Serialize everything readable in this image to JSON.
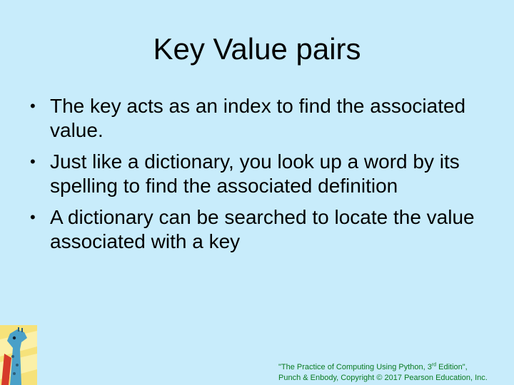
{
  "slide": {
    "title": "Key Value pairs",
    "bullets": [
      "The key acts as an index to find the associated value.",
      "Just like a dictionary, you look up a word by its spelling to find the associated definition",
      "A dictionary can be searched to locate the value associated with a key"
    ]
  },
  "footer": {
    "line1_before_sup": "\"The Practice of Computing Using Python, 3",
    "line1_sup": "rd",
    "line1_after_sup": " Edition\",",
    "line2": "Punch & Enbody, Copyright © 2017 Pearson Education, Inc."
  },
  "icons": {
    "logo": "giraffe-logo-icon"
  },
  "colors": {
    "background": "#c8ecfb",
    "footer_text": "#0a7a22"
  }
}
